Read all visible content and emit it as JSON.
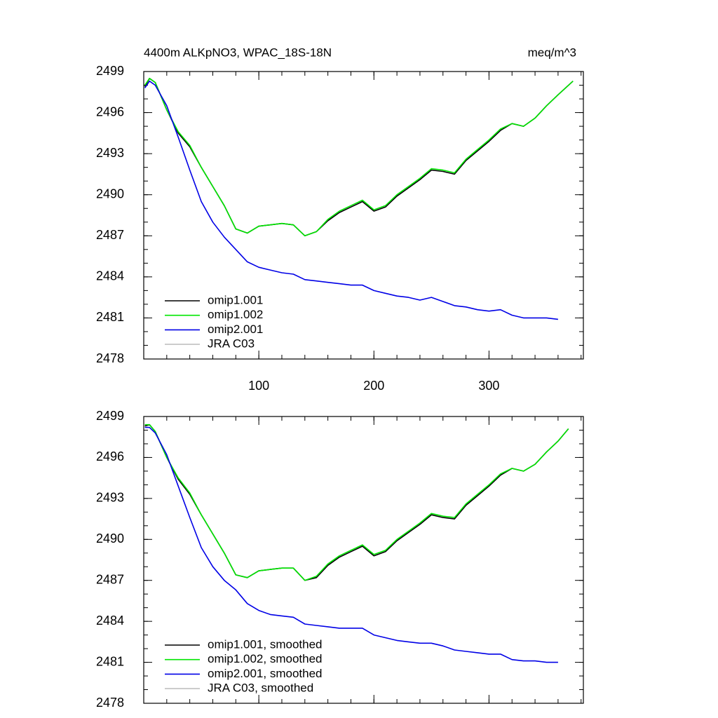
{
  "chart_data": [
    {
      "type": "line",
      "title": "4400m ALKpNO3, WPAC_18S-18N",
      "unit_label": "meq/m^3",
      "x": [
        1,
        5,
        10,
        20,
        30,
        40,
        50,
        60,
        70,
        80,
        90,
        100,
        110,
        120,
        130,
        140,
        150,
        160,
        170,
        180,
        190,
        200,
        210,
        220,
        230,
        240,
        250,
        260,
        270,
        280,
        290,
        300,
        310,
        320,
        330,
        340,
        350,
        360,
        373
      ],
      "series": [
        {
          "name": "omip1.001",
          "color": "#000000",
          "values": [
            2497.9,
            2498.5,
            2498.2,
            2496.2,
            2494.5,
            2493.5,
            2492.0,
            2490.6,
            2489.2,
            2487.5,
            2487.2,
            2487.7,
            2487.8,
            2487.9,
            2487.8,
            2487.0,
            2487.3,
            2488.1,
            2488.7,
            2489.1,
            2489.5,
            2488.8,
            2489.1,
            2489.9,
            2490.5,
            2491.1,
            2491.8,
            2491.7,
            2491.5,
            2492.5,
            2493.2,
            2493.9,
            2494.7,
            2495.2,
            2495.0,
            2495.6,
            2496.5,
            2497.3,
            2498.3
          ]
        },
        {
          "name": "omip1.002",
          "color": "#00e600",
          "values": [
            2498.0,
            2498.5,
            2498.2,
            2496.2,
            2494.6,
            2493.6,
            2492.0,
            2490.6,
            2489.2,
            2487.5,
            2487.2,
            2487.7,
            2487.8,
            2487.9,
            2487.8,
            2487.0,
            2487.3,
            2488.2,
            2488.8,
            2489.2,
            2489.6,
            2488.9,
            2489.2,
            2490.0,
            2490.6,
            2491.2,
            2491.9,
            2491.8,
            2491.6,
            2492.6,
            2493.3,
            2494.0,
            2494.8,
            2495.2,
            2495.0,
            2495.6,
            2496.5,
            2497.3,
            2498.3
          ]
        },
        {
          "name": "omip2.001",
          "color": "#0000e6",
          "values": [
            2497.8,
            2498.3,
            2498.0,
            2496.5,
            2494.2,
            2491.8,
            2489.5,
            2488.0,
            2486.9,
            2486.0,
            2485.1,
            2484.7,
            2484.5,
            2484.3,
            2484.2,
            2483.8,
            2483.7,
            2483.6,
            2483.5,
            2483.4,
            2483.4,
            2483.0,
            2482.8,
            2482.6,
            2482.5,
            2482.3,
            2482.5,
            2482.2,
            2481.9,
            2481.8,
            2481.6,
            2481.5,
            2481.6,
            2481.2,
            2481.0,
            2481.0,
            2481.0,
            2480.9,
            null
          ]
        },
        {
          "name": "JRA C03",
          "color": "#c0c0c0",
          "values": [
            null,
            null,
            null,
            null,
            null,
            null,
            null,
            null,
            null,
            null,
            null,
            null,
            null,
            null,
            null,
            null,
            null,
            null,
            null,
            null,
            null,
            null,
            null,
            null,
            null,
            null,
            null,
            null,
            null,
            null,
            null,
            null,
            null,
            null,
            null,
            null,
            null,
            null,
            null
          ]
        }
      ],
      "xlim": [
        0,
        382
      ],
      "xticks": [
        100,
        200,
        300
      ],
      "ylim": [
        2478,
        2499
      ],
      "yticks": [
        2478,
        2481,
        2484,
        2487,
        2490,
        2493,
        2496,
        2499
      ],
      "legend": "lower-left"
    },
    {
      "type": "line",
      "x": [
        1,
        5,
        10,
        20,
        30,
        40,
        50,
        60,
        70,
        80,
        90,
        100,
        110,
        120,
        130,
        140,
        150,
        160,
        170,
        180,
        190,
        200,
        210,
        220,
        230,
        240,
        250,
        260,
        270,
        280,
        290,
        300,
        310,
        320,
        330,
        340,
        350,
        360,
        369
      ],
      "series": [
        {
          "name": "omip1.001, smoothed",
          "color": "#000000",
          "values": [
            2498.3,
            2498.4,
            2497.9,
            2496.0,
            2494.4,
            2493.3,
            2491.8,
            2490.4,
            2489.0,
            2487.4,
            2487.2,
            2487.7,
            2487.8,
            2487.9,
            2487.9,
            2487.0,
            2487.2,
            2488.1,
            2488.7,
            2489.1,
            2489.5,
            2488.8,
            2489.1,
            2489.9,
            2490.5,
            2491.1,
            2491.8,
            2491.6,
            2491.5,
            2492.5,
            2493.2,
            2493.9,
            2494.7,
            2495.2,
            2495.0,
            2495.5,
            2496.4,
            2497.2,
            2498.1
          ]
        },
        {
          "name": "omip1.002, smoothed",
          "color": "#00e600",
          "values": [
            2498.4,
            2498.4,
            2497.9,
            2496.0,
            2494.5,
            2493.4,
            2491.8,
            2490.4,
            2489.0,
            2487.4,
            2487.2,
            2487.7,
            2487.8,
            2487.9,
            2487.9,
            2487.0,
            2487.3,
            2488.2,
            2488.8,
            2489.2,
            2489.6,
            2488.9,
            2489.2,
            2490.0,
            2490.6,
            2491.2,
            2491.9,
            2491.7,
            2491.6,
            2492.6,
            2493.3,
            2494.0,
            2494.8,
            2495.2,
            2495.0,
            2495.5,
            2496.4,
            2497.2,
            2498.1
          ]
        },
        {
          "name": "omip2.001, smoothed",
          "color": "#0000e6",
          "values": [
            2498.2,
            2498.2,
            2497.8,
            2496.2,
            2493.9,
            2491.6,
            2489.4,
            2488.0,
            2487.0,
            2486.3,
            2485.3,
            2484.8,
            2484.5,
            2484.4,
            2484.3,
            2483.8,
            2483.7,
            2483.6,
            2483.5,
            2483.5,
            2483.5,
            2483.0,
            2482.8,
            2482.6,
            2482.5,
            2482.4,
            2482.4,
            2482.2,
            2481.9,
            2481.8,
            2481.7,
            2481.6,
            2481.6,
            2481.2,
            2481.1,
            2481.1,
            2481.0,
            2481.0,
            null
          ]
        },
        {
          "name": "JRA C03, smoothed",
          "color": "#c0c0c0",
          "values": [
            null,
            null,
            null,
            null,
            null,
            null,
            null,
            null,
            null,
            null,
            null,
            null,
            null,
            null,
            null,
            null,
            null,
            null,
            null,
            null,
            null,
            null,
            null,
            null,
            null,
            null,
            null,
            null,
            null,
            null,
            null,
            null,
            null,
            null,
            null,
            null,
            null,
            null,
            null
          ]
        }
      ],
      "xlim": [
        0,
        382
      ],
      "xticks": [
        100,
        200,
        300
      ],
      "ylim": [
        2478,
        2499
      ],
      "yticks": [
        2478,
        2481,
        2484,
        2487,
        2490,
        2493,
        2496,
        2499
      ],
      "legend": "lower-left"
    }
  ]
}
